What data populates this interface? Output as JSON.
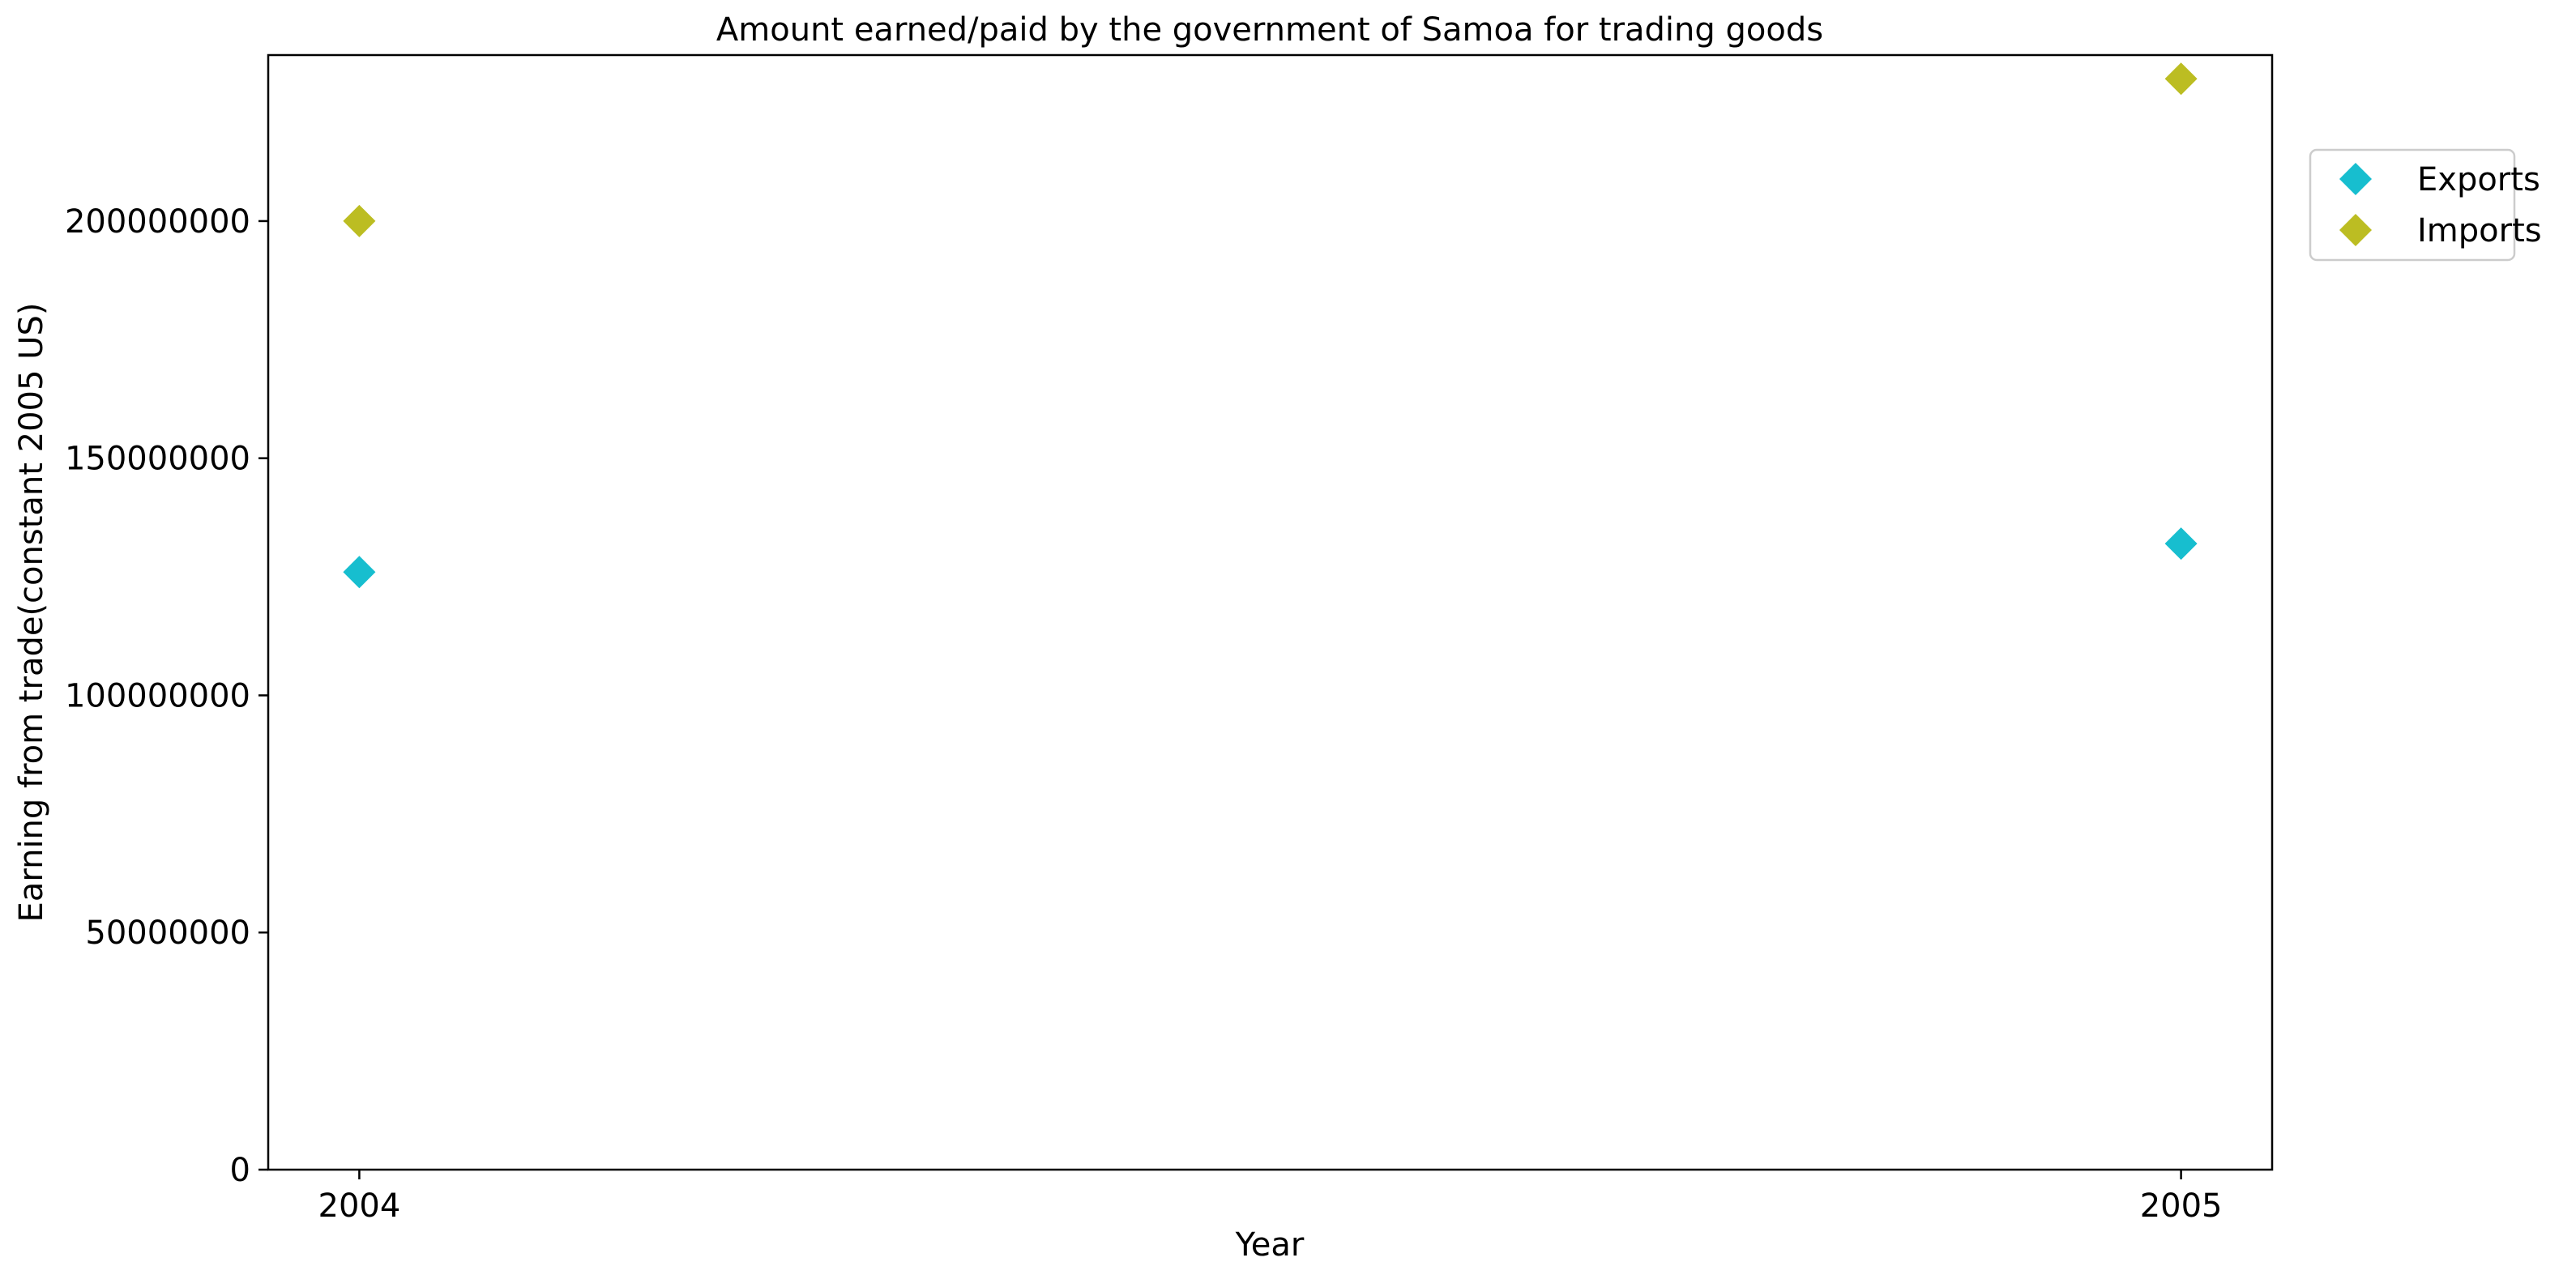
{
  "chart_data": {
    "type": "scatter",
    "title": "Amount earned/paid by the government of Samoa for trading goods",
    "xlabel": "Year",
    "ylabel": "Earning from trade(constant 2005 US)",
    "x": [
      2004,
      2005
    ],
    "x_tick_labels": [
      "2004",
      "2005"
    ],
    "xlim": [
      2003.95,
      2005.05
    ],
    "ylim": [
      0,
      235000000
    ],
    "y_ticks": [
      0,
      50000000,
      100000000,
      150000000,
      200000000
    ],
    "y_tick_labels": [
      "0",
      "50000000",
      "100000000",
      "150000000",
      "200000000"
    ],
    "grid": false,
    "legend_position": "outside-right-top",
    "series": [
      {
        "name": "Exports",
        "marker": "diamond",
        "color": "#17becf",
        "values": [
          126000000,
          132000000
        ]
      },
      {
        "name": "Imports",
        "marker": "diamond",
        "color": "#bcbd22",
        "values": [
          200000000,
          230000000
        ]
      }
    ]
  }
}
